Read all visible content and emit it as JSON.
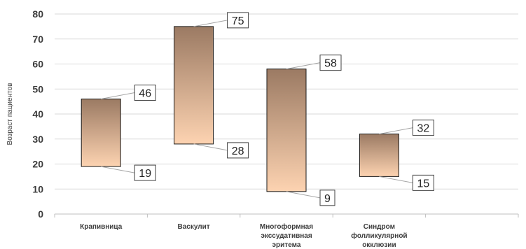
{
  "chart_data": {
    "type": "bar",
    "subtype": "floating-range",
    "ylabel": "Возраст пациентов",
    "xlabel": "",
    "ylim": [
      0,
      80
    ],
    "yticks": [
      0,
      10,
      20,
      30,
      40,
      50,
      60,
      70,
      80
    ],
    "grid": true,
    "legend": "none",
    "categories": [
      [
        "Крапивница"
      ],
      [
        "Васкулит"
      ],
      [
        "Многоформная",
        "экссудативная",
        "эритема"
      ],
      [
        "Синдром",
        "фолликулярной",
        "окклюзии"
      ],
      [
        ""
      ]
    ],
    "ranges": [
      {
        "min": 19,
        "max": 46
      },
      {
        "min": 28,
        "max": 75
      },
      {
        "min": 9,
        "max": 58
      },
      {
        "min": 15,
        "max": 32
      }
    ],
    "colors": {
      "bar_top": "#9b7a63",
      "bar_bottom": "#fdd3b1",
      "grid": "#d9d9d9",
      "axis": "#bfbfbf",
      "text": "#3b3b3b"
    }
  }
}
